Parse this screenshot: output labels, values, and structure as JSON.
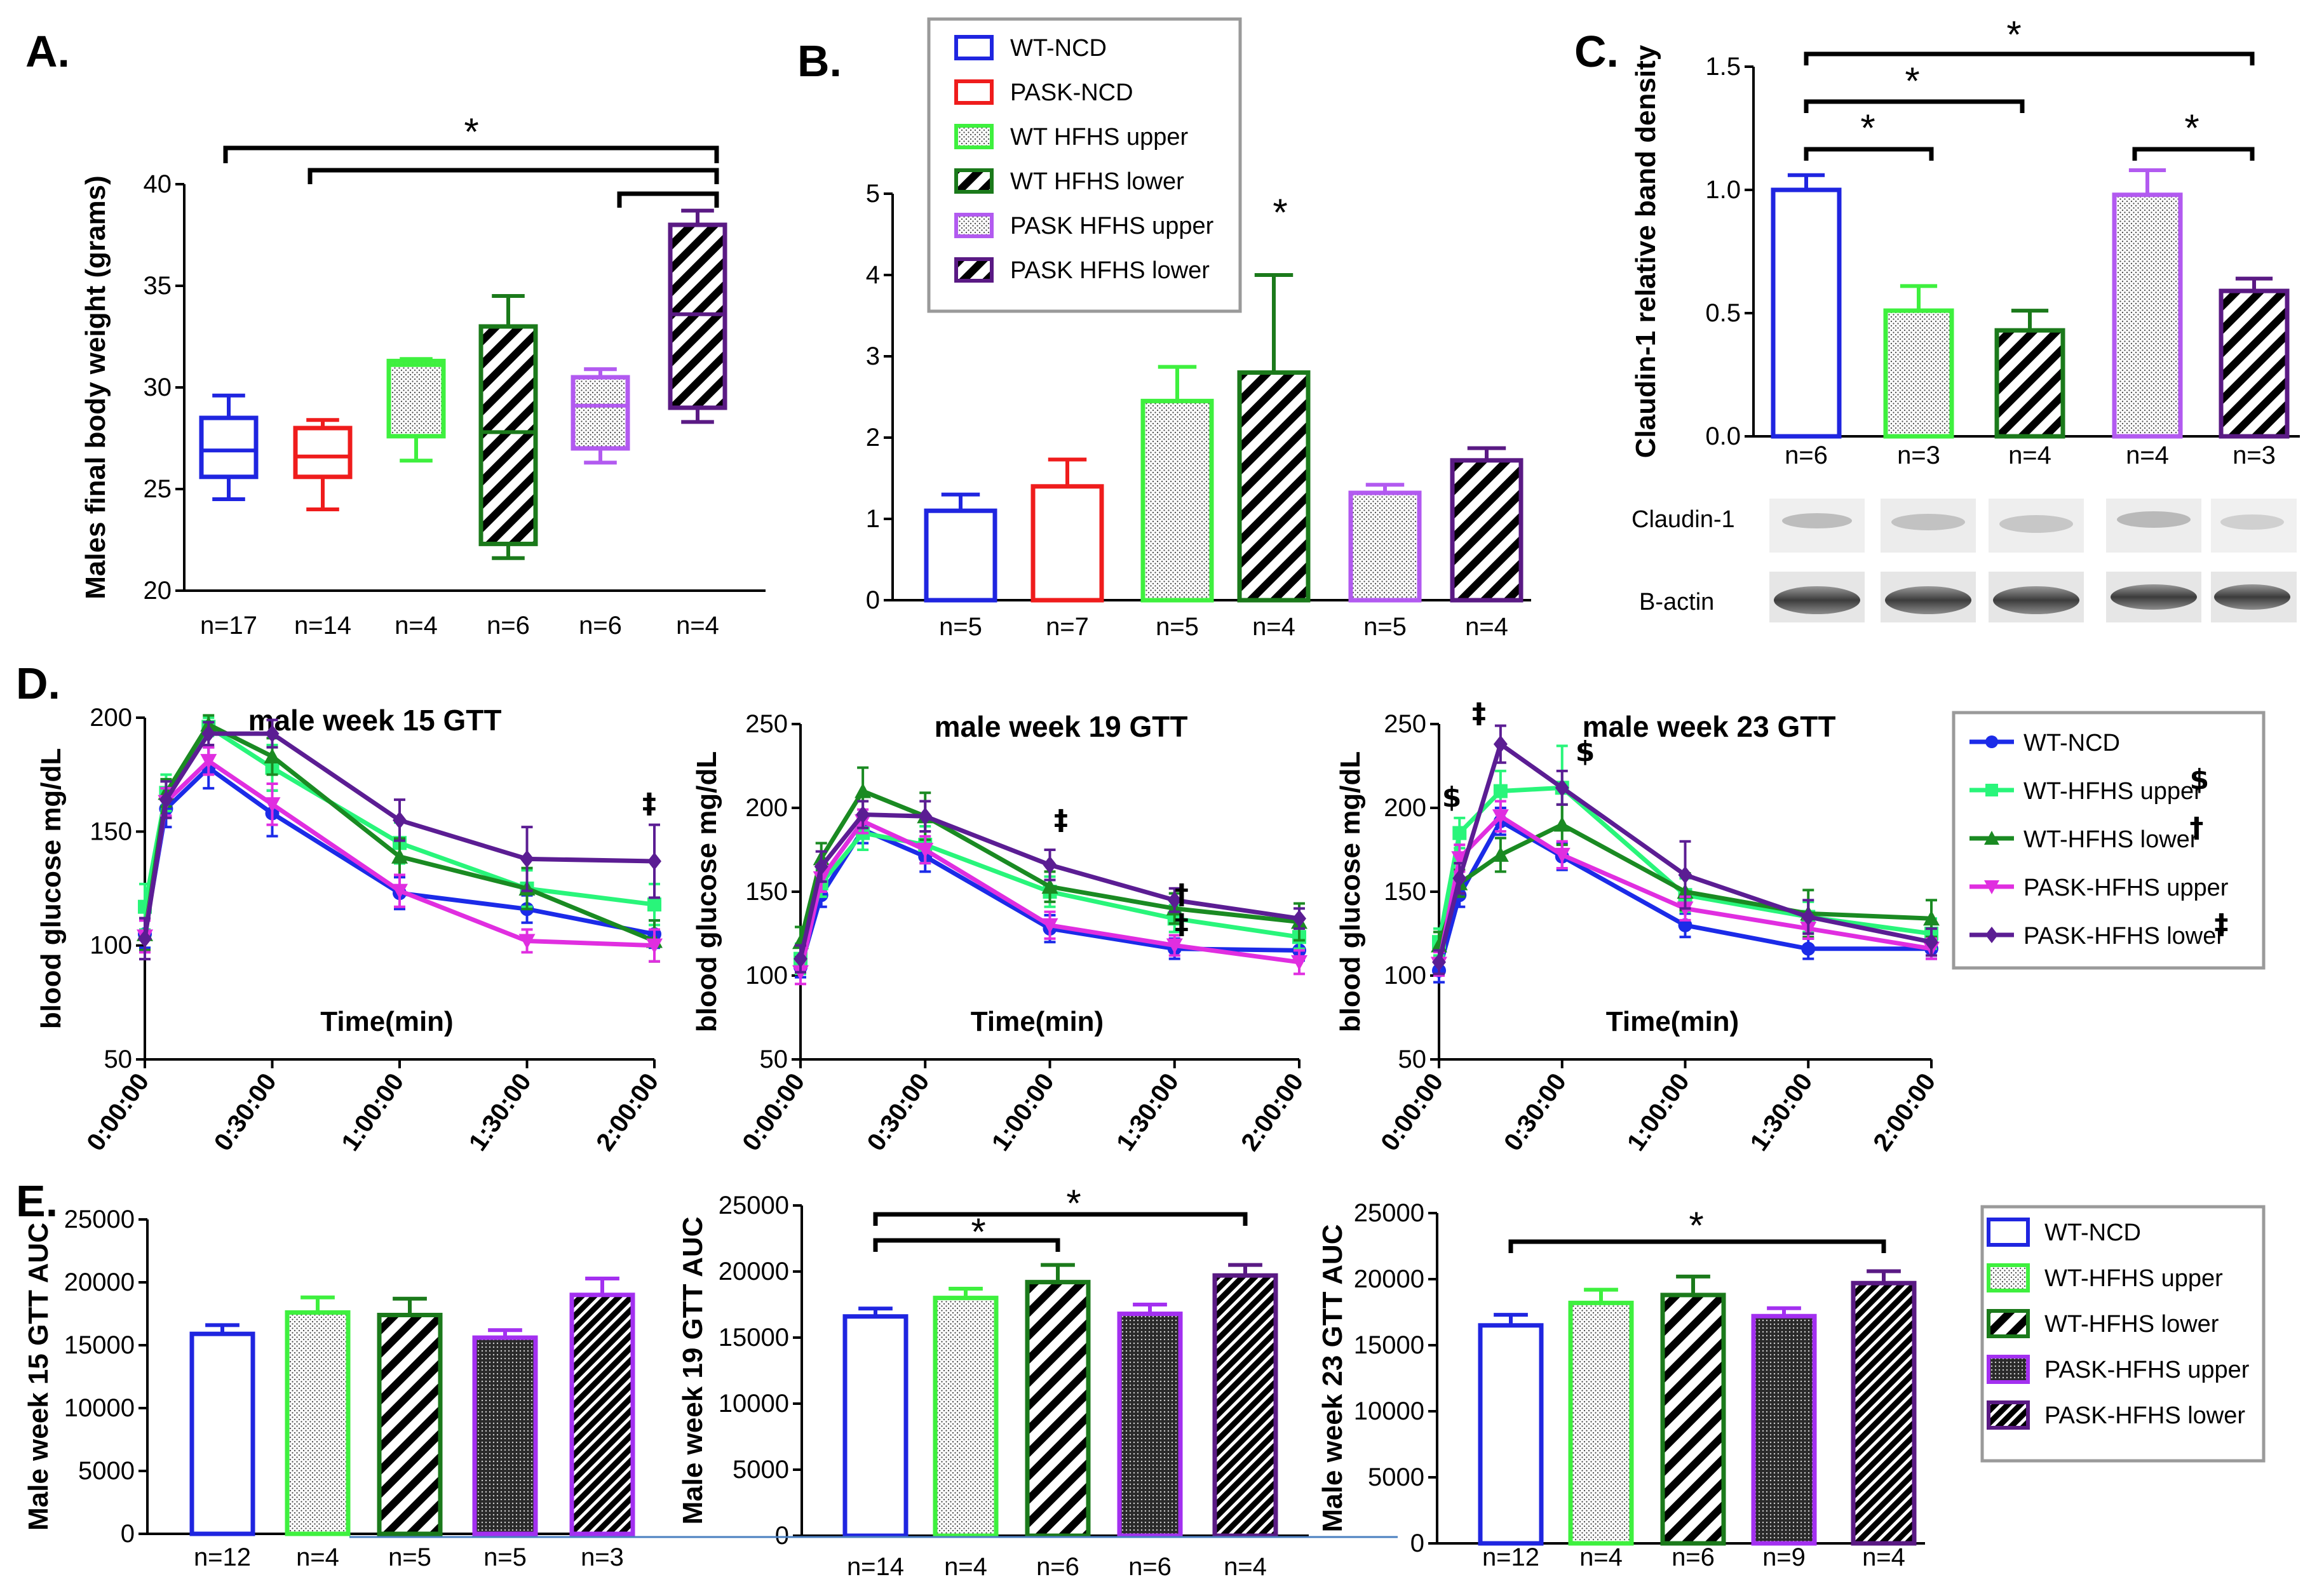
{
  "colors": {
    "wt_ncd": "#1f25e0",
    "pask_ncd": "#ef1c1c",
    "wt_hfhs_upper": "#3ef03e",
    "wt_hfhs_lower": "#1b7a1b",
    "pask_hfhs_upper": "#b25af0",
    "pask_hfhs_lower": "#5a1a84",
    "gtt_wt_ncd": "#1b2be8",
    "gtt_wt_upper": "#29f57a",
    "gtt_wt_lower": "#1a8a22",
    "gtt_pask_upper": "#e02ee0",
    "gtt_pask_lower": "#5b1d93",
    "e_pask_upper": "#a330f0"
  },
  "panel_letters": {
    "a": "A.",
    "b": "B.",
    "c": "C.",
    "d": "D.",
    "e": "E."
  },
  "chart_data": [
    {
      "id": "A",
      "type": "box",
      "ylabel": "Males final body weight (grams)",
      "ylim": [
        20,
        40
      ],
      "yticks": [
        "20",
        "25",
        "30",
        "35",
        "40"
      ],
      "categories": [
        "n=17",
        "n=14",
        "n=4",
        "n=6",
        "n=6",
        "n=4"
      ],
      "boxes": [
        {
          "group": "WT-NCD",
          "min": 24.5,
          "q1": 25.6,
          "median": 26.9,
          "q3": 28.5,
          "max": 29.6
        },
        {
          "group": "PASK-NCD",
          "min": 24.0,
          "q1": 25.6,
          "median": 26.6,
          "q3": 28.0,
          "max": 28.4
        },
        {
          "group": "WT HFHS upper",
          "min": 26.4,
          "q1": 27.6,
          "median": 31.1,
          "q3": 31.3,
          "max": 31.4
        },
        {
          "group": "WT HFHS lower",
          "min": 21.6,
          "q1": 22.3,
          "median": 27.8,
          "q3": 33.0,
          "max": 34.5
        },
        {
          "group": "PASK HFHS upper",
          "min": 26.3,
          "q1": 27.0,
          "median": 29.1,
          "q3": 30.5,
          "max": 30.9
        },
        {
          "group": "PASK HFHS lower",
          "min": 28.3,
          "q1": 29.0,
          "median": 33.6,
          "q3": 38.0,
          "max": 38.7
        }
      ],
      "significance_label": "*"
    },
    {
      "id": "B",
      "type": "bar",
      "ylim": [
        0,
        5
      ],
      "yticks": [
        "0",
        "1",
        "2",
        "3",
        "4",
        "5"
      ],
      "categories": [
        "n=5",
        "n=7",
        "n=5",
        "n=4",
        "n=5",
        "n=4"
      ],
      "values": [
        1.1,
        1.4,
        2.45,
        2.8,
        1.32,
        1.72
      ],
      "errors": [
        0.2,
        0.33,
        0.42,
        1.2,
        0.1,
        0.15
      ],
      "legend": [
        "WT-NCD",
        "PASK-NCD",
        "WT HFHS upper",
        "WT HFHS lower",
        "PASK HFHS upper",
        "PASK HFHS lower"
      ],
      "significance_label": "*"
    },
    {
      "id": "C",
      "type": "bar",
      "ylabel": "Claudin-1 relative band density",
      "ylim": [
        0,
        1.5
      ],
      "yticks": [
        "0.0",
        "0.5",
        "1.0",
        "1.5"
      ],
      "categories": [
        "n=6",
        "n=3",
        "n=4",
        "n=4",
        "n=3"
      ],
      "values": [
        1.0,
        0.51,
        0.43,
        0.98,
        0.59
      ],
      "errors": [
        0.06,
        0.1,
        0.08,
        0.1,
        0.05
      ],
      "significance_label": "*",
      "blot_labels": [
        "Claudin-1",
        "B-actin"
      ]
    },
    {
      "id": "D1",
      "type": "line",
      "title": "male week 15 GTT",
      "xlabel": "Time(min)",
      "ylabel": "blood glucose mg/dL",
      "ylim": [
        50,
        200
      ],
      "yticks": [
        "50",
        "100",
        "150",
        "200"
      ],
      "xlim": [
        0,
        120
      ],
      "xticks": [
        "0:00:00",
        "0:30:00",
        "1:00:00",
        "1:30:00",
        "2:00:00"
      ],
      "x": [
        0,
        5,
        15,
        30,
        60,
        90,
        120
      ],
      "series": [
        {
          "name": "WT-NCD",
          "values": [
            105,
            160,
            178,
            158,
            123,
            116,
            105
          ],
          "err": [
            6,
            8,
            9,
            10,
            7,
            6,
            6
          ]
        },
        {
          "name": "WT-HFHS upper",
          "values": [
            117,
            167,
            196,
            178,
            145,
            125,
            118
          ],
          "err": [
            10,
            8,
            4,
            10,
            9,
            8,
            9
          ]
        },
        {
          "name": "WT-HFHS lower",
          "values": [
            105,
            167,
            197,
            183,
            139,
            125,
            102
          ],
          "err": [
            7,
            6,
            4,
            8,
            8,
            9,
            9
          ]
        },
        {
          "name": "PASK-HFHS upper",
          "values": [
            104,
            163,
            181,
            162,
            124,
            102,
            100
          ],
          "err": [
            7,
            6,
            6,
            9,
            7,
            5,
            7
          ]
        },
        {
          "name": "PASK-HFHS lower",
          "values": [
            103,
            164,
            193,
            193,
            155,
            138,
            137
          ],
          "err": [
            9,
            8,
            5,
            6,
            9,
            14,
            16
          ]
        }
      ],
      "annotations": [
        "‡"
      ]
    },
    {
      "id": "D2",
      "type": "line",
      "title": "male week 19 GTT",
      "xlabel": "Time(min)",
      "ylabel": "blood glucose mg/dL",
      "ylim": [
        50,
        250
      ],
      "yticks": [
        "50",
        "100",
        "150",
        "200",
        "250"
      ],
      "xlim": [
        0,
        120
      ],
      "xticks": [
        "0:00:00",
        "0:30:00",
        "1:00:00",
        "1:30:00",
        "2:00:00"
      ],
      "x": [
        0,
        5,
        15,
        30,
        60,
        90,
        120
      ],
      "series": [
        {
          "name": "WT-NCD",
          "values": [
            105,
            148,
            187,
            171,
            128,
            116,
            115
          ],
          "err": [
            6,
            7,
            8,
            9,
            8,
            6,
            6
          ]
        },
        {
          "name": "WT-HFHS upper",
          "values": [
            110,
            155,
            185,
            178,
            150,
            134,
            123
          ],
          "err": [
            9,
            8,
            10,
            11,
            9,
            8,
            7
          ]
        },
        {
          "name": "WT-HFHS lower",
          "values": [
            120,
            170,
            210,
            195,
            153,
            140,
            132
          ],
          "err": [
            9,
            9,
            14,
            14,
            9,
            9,
            11
          ]
        },
        {
          "name": "PASK-HFHS upper",
          "values": [
            102,
            158,
            192,
            175,
            130,
            118,
            108
          ],
          "err": [
            7,
            8,
            7,
            8,
            8,
            6,
            7
          ]
        },
        {
          "name": "PASK-HFHS lower",
          "values": [
            110,
            165,
            196,
            195,
            166,
            145,
            134
          ],
          "err": [
            8,
            9,
            8,
            9,
            9,
            7,
            6
          ]
        }
      ],
      "annotations": [
        "‡",
        "†",
        "‡"
      ]
    },
    {
      "id": "D3",
      "type": "line",
      "title": "male week 23 GTT",
      "xlabel": "Time(min)",
      "ylabel": "blood glucose mg/dL",
      "ylim": [
        50,
        250
      ],
      "yticks": [
        "50",
        "100",
        "150",
        "200",
        "250"
      ],
      "xlim": [
        0,
        120
      ],
      "xticks": [
        "0:00:00",
        "0:30:00",
        "1:00:00",
        "1:30:00",
        "2:00:00"
      ],
      "x": [
        0,
        5,
        15,
        30,
        60,
        90,
        120
      ],
      "series": [
        {
          "name": "WT-NCD",
          "values": [
            103,
            148,
            192,
            171,
            130,
            116,
            116
          ],
          "err": [
            7,
            7,
            8,
            8,
            7,
            6,
            6
          ]
        },
        {
          "name": "WT-HFHS upper",
          "values": [
            120,
            185,
            210,
            212,
            148,
            135,
            125
          ],
          "err": [
            8,
            9,
            12,
            25,
            10,
            9,
            9
          ]
        },
        {
          "name": "WT-HFHS lower",
          "values": [
            118,
            155,
            172,
            190,
            150,
            137,
            134
          ],
          "err": [
            8,
            8,
            10,
            12,
            11,
            14,
            11
          ]
        },
        {
          "name": "PASK-HFHS upper",
          "values": [
            107,
            170,
            195,
            172,
            140,
            128,
            116
          ],
          "err": [
            7,
            8,
            9,
            8,
            7,
            6,
            6
          ]
        },
        {
          "name": "PASK-HFHS lower",
          "values": [
            108,
            158,
            238,
            212,
            160,
            135,
            120
          ],
          "err": [
            7,
            9,
            11,
            10,
            20,
            10,
            8
          ]
        }
      ],
      "annotations": [
        "$",
        "‡",
        "$"
      ],
      "legend": {
        "labels": [
          "WT-NCD",
          "WT-HFHS upper",
          "WT-HFHS lower",
          "PASK-HFHS upper",
          "PASK-HFHS lower"
        ],
        "marks": [
          "",
          "$",
          "†",
          "",
          "‡"
        ]
      }
    },
    {
      "id": "E1",
      "type": "bar",
      "ylabel": "Male week 15 GTT AUC",
      "ylim": [
        0,
        25000
      ],
      "yticks": [
        "0",
        "5000",
        "10000",
        "15000",
        "20000",
        "25000"
      ],
      "categories": [
        "n=12",
        "n=4",
        "n=5",
        "n=5",
        "n=3"
      ],
      "values": [
        15900,
        17600,
        17400,
        15600,
        19000
      ],
      "errors": [
        700,
        1200,
        1300,
        600,
        1300
      ]
    },
    {
      "id": "E2",
      "type": "bar",
      "ylabel": "Male week 19 GTT AUC",
      "ylim": [
        0,
        25000
      ],
      "yticks": [
        "0",
        "5000",
        "10000",
        "15000",
        "20000",
        "25000"
      ],
      "categories": [
        "n=14",
        "n=4",
        "n=6",
        "n=6",
        "n=4"
      ],
      "values": [
        16600,
        18000,
        19200,
        16800,
        19700
      ],
      "errors": [
        600,
        700,
        1300,
        700,
        800
      ],
      "significance_label": "*"
    },
    {
      "id": "E3",
      "type": "bar",
      "ylabel": "Male week 23 GTT AUC",
      "ylim": [
        0,
        25000
      ],
      "yticks": [
        "0",
        "5000",
        "10000",
        "15000",
        "20000",
        "25000"
      ],
      "categories": [
        "n=12",
        "n=4",
        "n=6",
        "n=9",
        "n=4"
      ],
      "values": [
        16500,
        18200,
        18800,
        17200,
        19700
      ],
      "errors": [
        800,
        1000,
        1400,
        600,
        900
      ],
      "significance_label": "*",
      "legend": [
        "WT-NCD",
        "WT-HFHS upper",
        "WT-HFHS lower",
        "PASK-HFHS upper",
        "PASK-HFHS lower"
      ]
    }
  ]
}
